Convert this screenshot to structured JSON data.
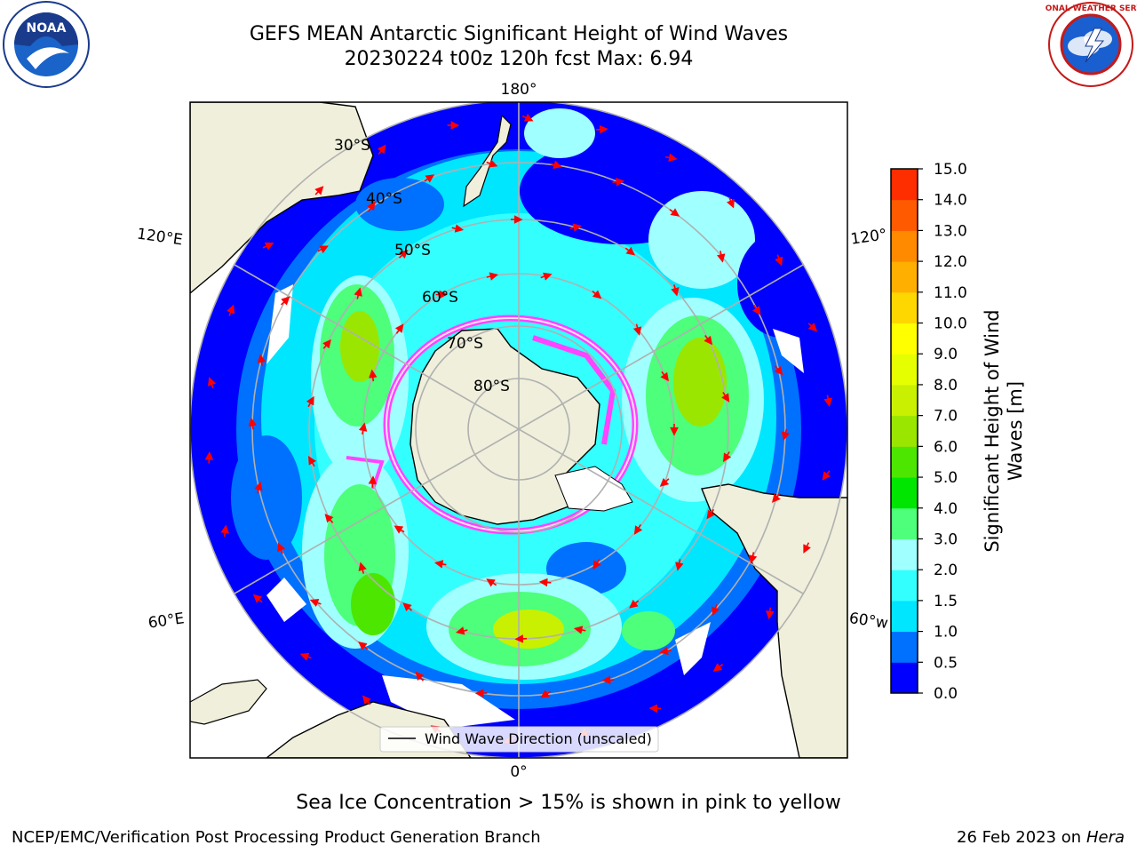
{
  "title_line1": "GEFS MEAN Antarctic Significant Height of Wind Waves",
  "title_line2": "20230224 t00z 120h fcst   Max: 6.94",
  "subtitle": "Sea Ice Concentration > 15% is shown in pink to yellow",
  "footer_left": "NCEP/EMC/Verification Post Processing Product Generation Branch",
  "footer_right_date": "26 Feb 2023 on",
  "footer_right_system": "Hera",
  "legend_label": "Wind Wave Direction (unscaled)",
  "noaa_logo_text": "NOAA",
  "nws_logo_text": "NATIONAL WEATHER SERVICE",
  "map": {
    "longitude_labels": {
      "top": "180°",
      "bottom": "0°",
      "upper_left": "120°E",
      "lower_left": "60°E",
      "upper_right": "120°",
      "lower_right": "60°ᴡ"
    },
    "latitude_labels": [
      "30°S",
      "40°S",
      "50°S",
      "60°S",
      "70°S",
      "80°S"
    ]
  },
  "colorbar": {
    "label_line1": "Significant Height of Wind",
    "label_line2": "Waves [m]",
    "ticks": [
      "0.0",
      "0.5",
      "1.0",
      "1.5",
      "2.0",
      "3.0",
      "4.0",
      "5.0",
      "6.0",
      "7.0",
      "8.0",
      "9.0",
      "10.0",
      "11.0",
      "12.0",
      "13.0",
      "14.0",
      "15.0"
    ],
    "colors": [
      "#0000ff",
      "#0070ff",
      "#00e6ff",
      "#33ffff",
      "#a0ffff",
      "#4dff7a",
      "#00e600",
      "#4de600",
      "#9ae600",
      "#c8f000",
      "#e6ff00",
      "#ffff00",
      "#ffd700",
      "#ffaf00",
      "#ff8a00",
      "#ff5a00",
      "#ff2e00",
      "#ff0000"
    ]
  },
  "colors": {
    "land": "#efefdb",
    "ice": "#ff44ff",
    "arrow": "#ff0000",
    "grid": "#b0b0b0"
  }
}
